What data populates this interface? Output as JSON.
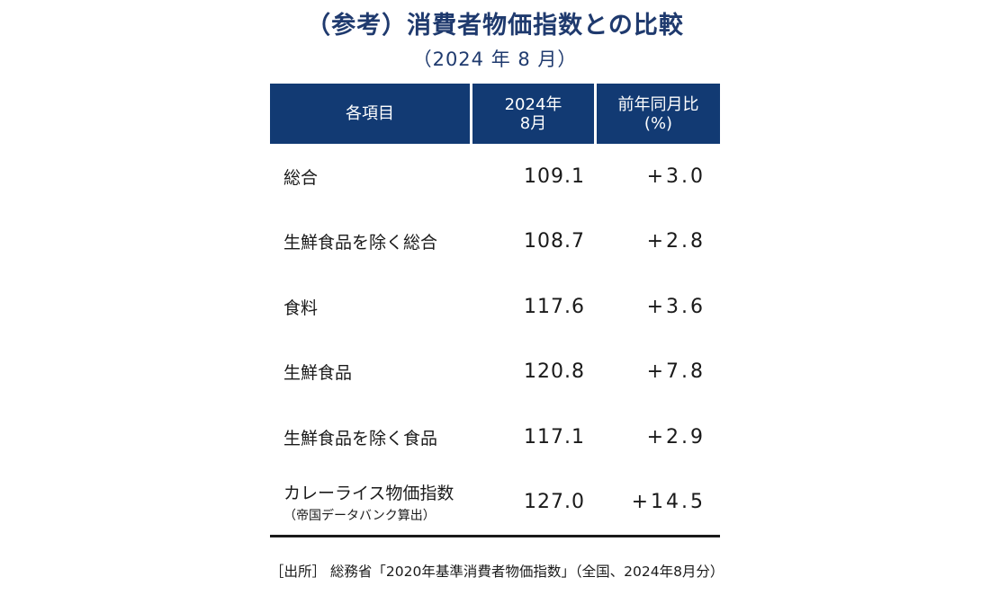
{
  "title": "（参考）消費者物価指数との比較",
  "subtitle": "（2024 年 8 月）",
  "table": {
    "headers": [
      "各項目",
      "2024年\n8月",
      "前年同月比\n(%)"
    ],
    "rows": [
      {
        "name": "総合",
        "note": "",
        "value": "109.1",
        "yoy": "+3.0"
      },
      {
        "name": "生鮮食品を除く総合",
        "note": "",
        "value": "108.7",
        "yoy": "+2.8"
      },
      {
        "name": "食料",
        "note": "",
        "value": "117.6",
        "yoy": "+3.6"
      },
      {
        "name": "生鮮食品",
        "note": "",
        "value": "120.8",
        "yoy": "+7.8"
      },
      {
        "name": "生鮮食品を除く食品",
        "note": "",
        "value": "117.1",
        "yoy": "+2.9"
      },
      {
        "name": "カレーライス物価指数",
        "note": "（帝国データバンク算出）",
        "value": "127.0",
        "yoy": "+14.5"
      }
    ]
  },
  "source": "［出所］ 総務省「2020年基準消費者物価指数」（全国、2024年8月分）",
  "colors": {
    "header_bg": "#123a73",
    "title": "#1f3a6e"
  }
}
